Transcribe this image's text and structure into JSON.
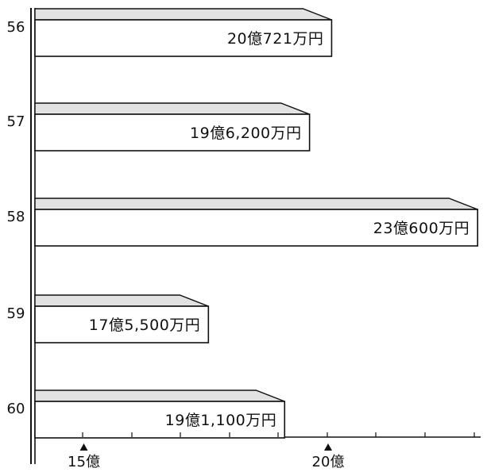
{
  "chart_data": {
    "type": "bar",
    "orientation": "horizontal",
    "categories": [
      "56",
      "57",
      "58",
      "59",
      "60"
    ],
    "values": [
      20.0721,
      19.62,
      23.06,
      17.55,
      19.11
    ],
    "value_labels": [
      "20億721万円",
      "19億6,200万円",
      "23億600万円",
      "17億5,500万円",
      "19億1,100万円"
    ],
    "x_ticks": [
      {
        "value": 15,
        "label": "15億"
      },
      {
        "value": 20,
        "label": "20億"
      }
    ],
    "xlim": [
      14,
      23.2
    ],
    "grid": false,
    "title": "",
    "xlabel": "",
    "ylabel": ""
  },
  "colors": {
    "bar_fill": "#ffffff",
    "bar_stroke": "#111111",
    "bar_top_shade": "#e2e2e2",
    "text": "#111111"
  }
}
